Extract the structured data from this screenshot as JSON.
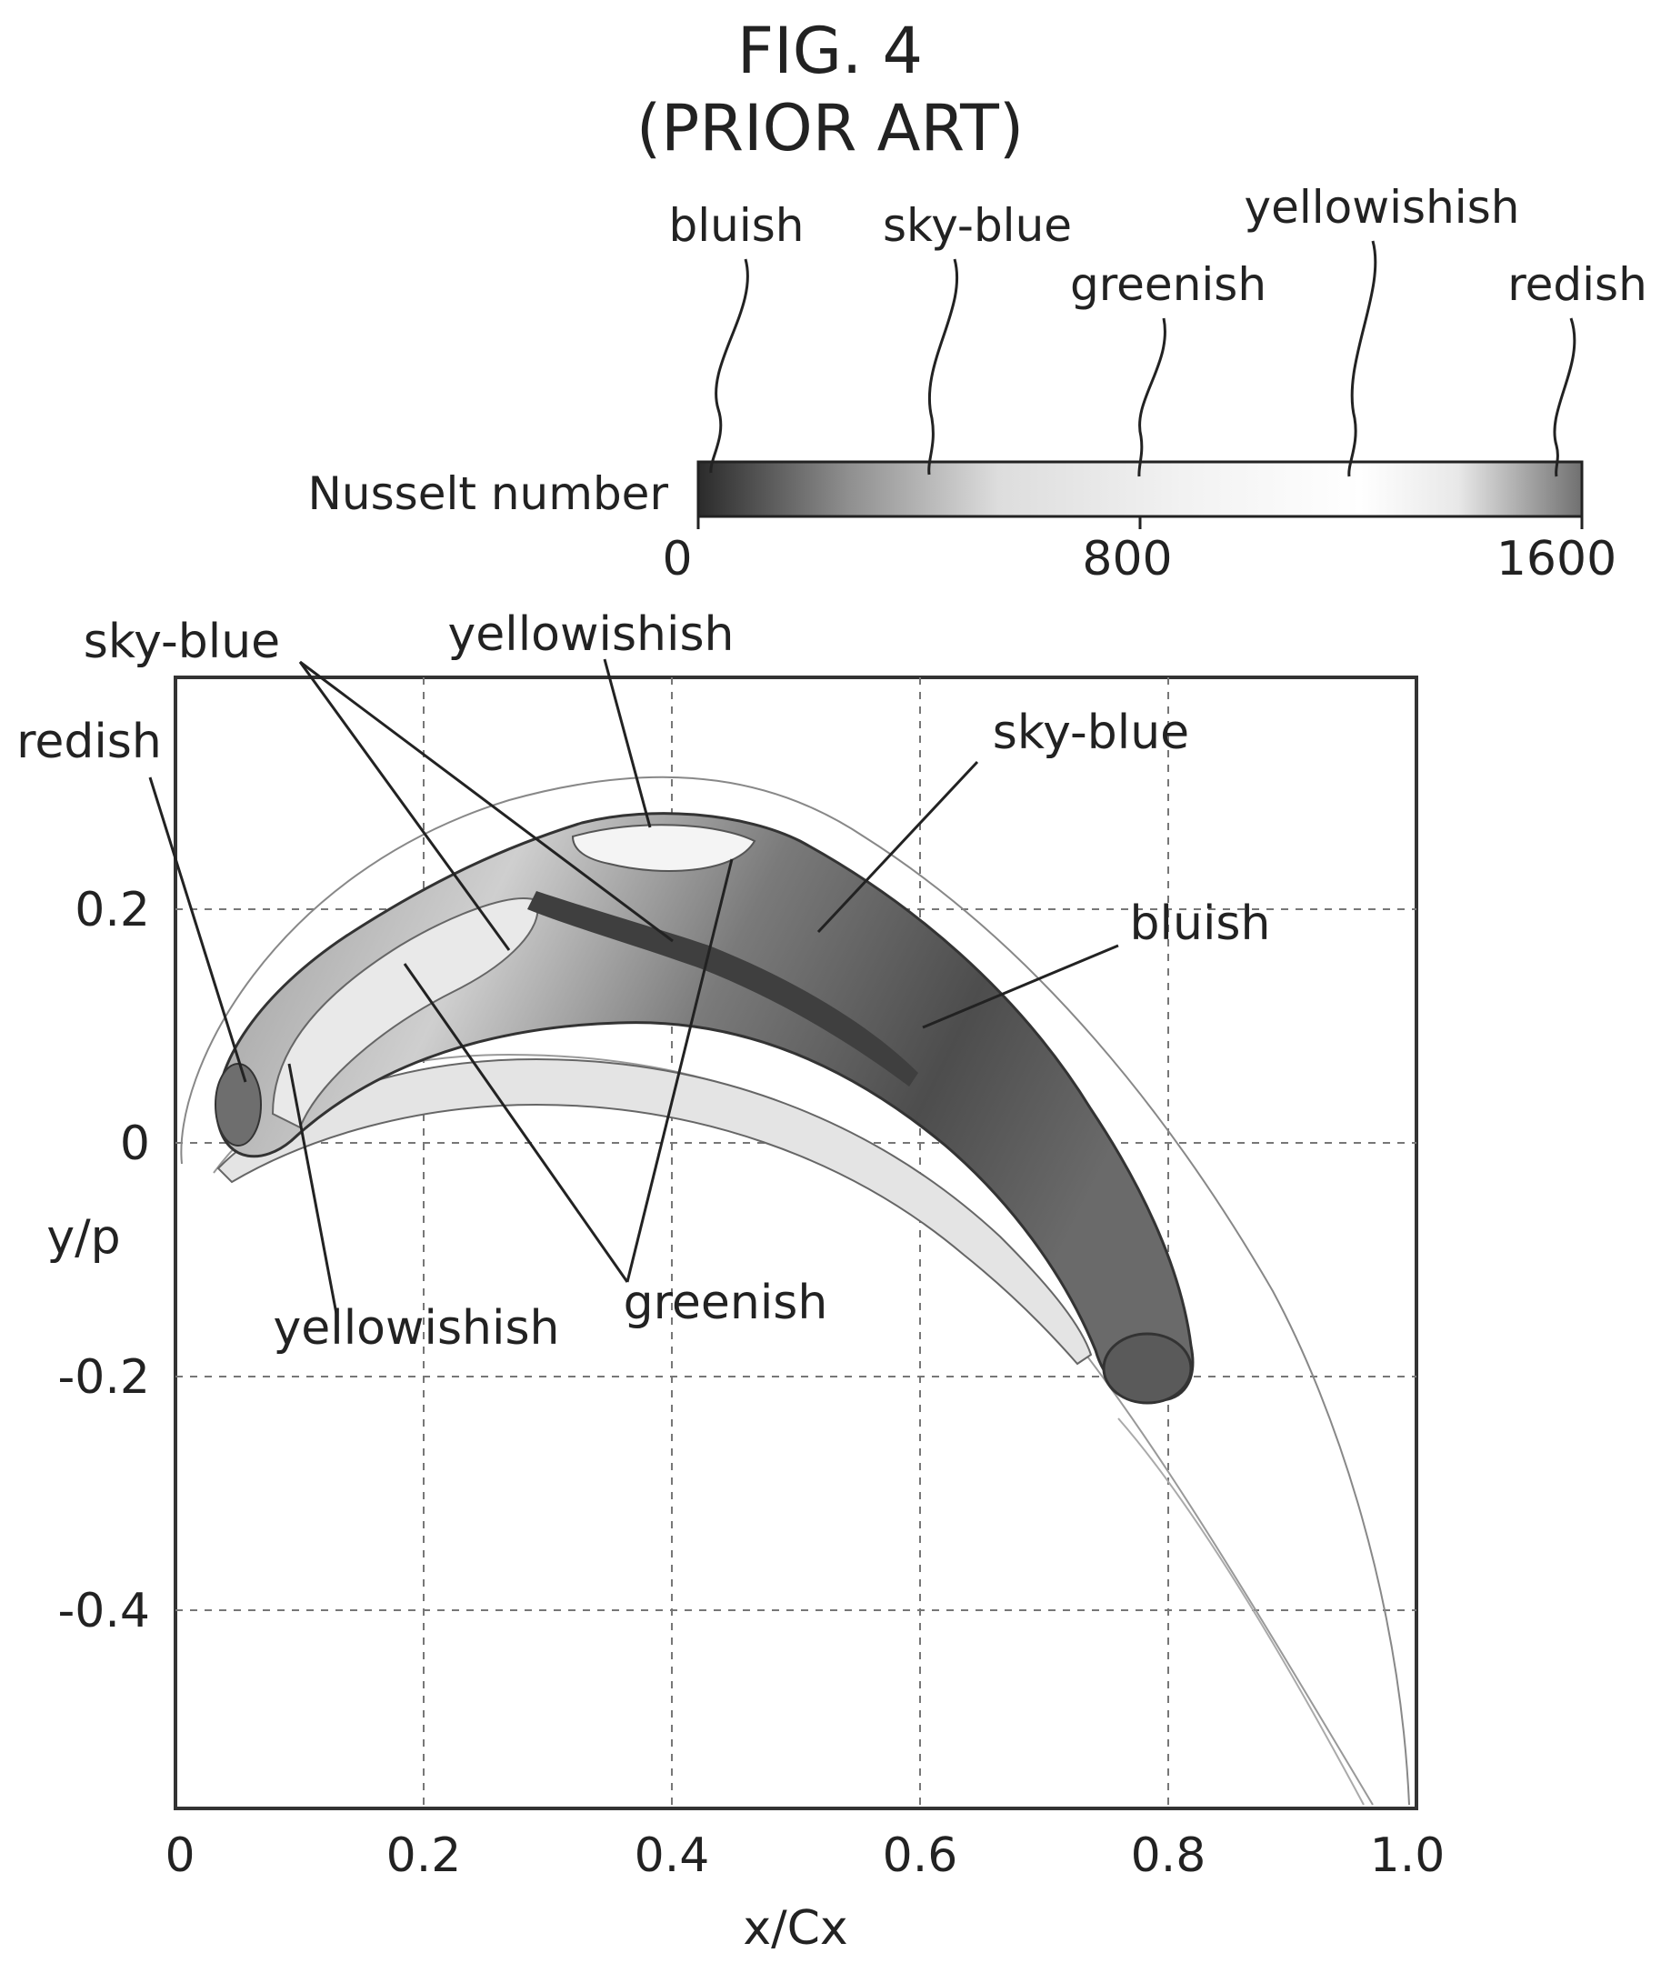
{
  "figure": {
    "title": "FIG. 4",
    "subtitle": "(PRIOR ART)"
  },
  "colorbar": {
    "label": "Nusselt number",
    "ticks": [
      "0",
      "800",
      "1600"
    ],
    "range": [
      0,
      1600
    ],
    "color_labels": [
      "bluish",
      "sky-blue",
      "greenish",
      "yellowishish",
      "redish"
    ],
    "stops": [
      "#2b2b2b",
      "#8f8f8f",
      "#dddddd",
      "#f2f2f2",
      "#ffffff",
      "#e8e8e8",
      "#707070"
    ]
  },
  "plot": {
    "xlabel": "x/Cx",
    "ylabel": "y/p",
    "x_ticks": [
      "0",
      "0.2",
      "0.4",
      "0.6",
      "0.8",
      "1.0"
    ],
    "y_ticks": [
      "0.2",
      "0",
      "-0.2",
      "-0.4"
    ],
    "xlim": [
      0,
      1.0
    ],
    "ylim": [
      -0.57,
      0.4
    ],
    "grid": true,
    "annotations": {
      "sky_blue_left": "sky-blue",
      "yellowishish_top": "yellowishish",
      "redish": "redish",
      "sky_blue_right": "sky-blue",
      "bluish": "bluish",
      "yellowishish_bottom": "yellowishish",
      "greenish": "greenish"
    }
  }
}
